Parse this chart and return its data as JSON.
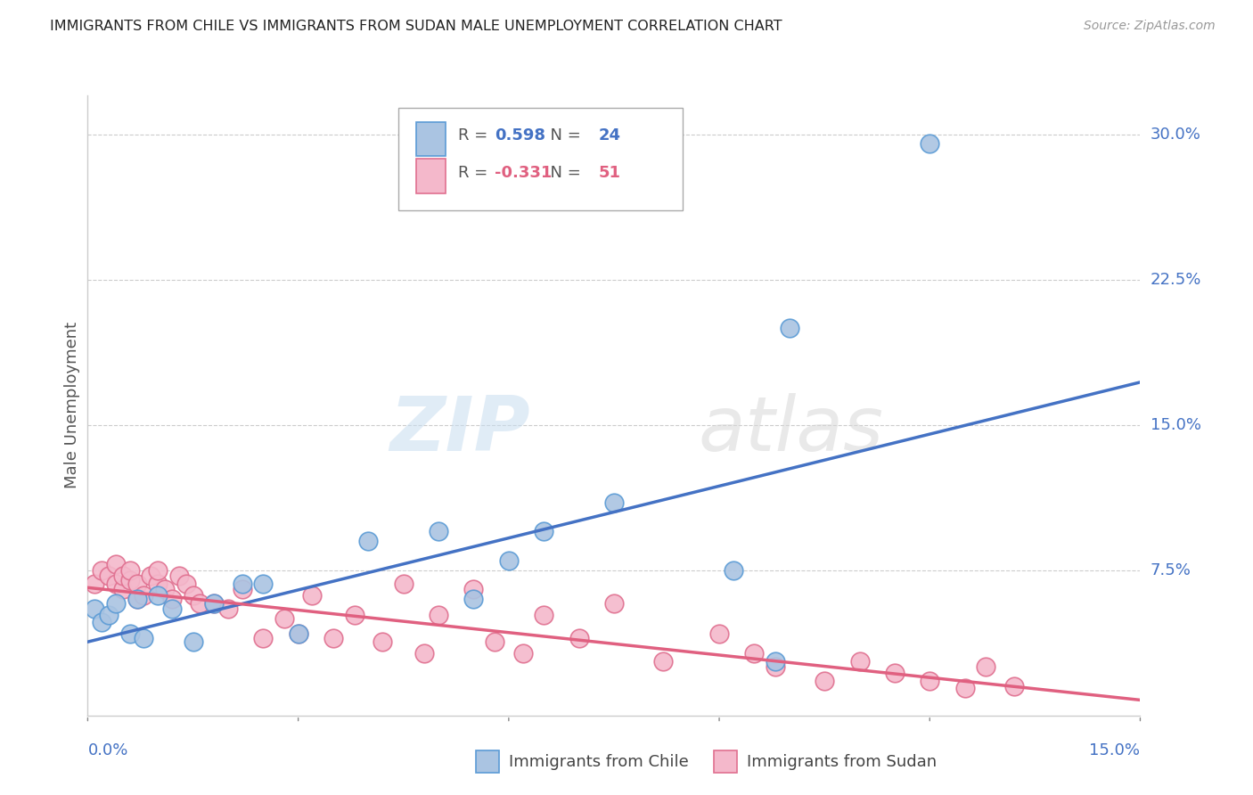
{
  "title": "IMMIGRANTS FROM CHILE VS IMMIGRANTS FROM SUDAN MALE UNEMPLOYMENT CORRELATION CHART",
  "source": "Source: ZipAtlas.com",
  "ylabel": "Male Unemployment",
  "ytick_labels": [
    "7.5%",
    "15.0%",
    "22.5%",
    "30.0%"
  ],
  "ytick_values": [
    0.075,
    0.15,
    0.225,
    0.3
  ],
  "xlim": [
    0.0,
    0.15
  ],
  "ylim": [
    0.0,
    0.32
  ],
  "chile_color": "#aac4e2",
  "chile_edge_color": "#5b9bd5",
  "sudan_color": "#f4b8cb",
  "sudan_edge_color": "#e07090",
  "line_chile_color": "#4472c4",
  "line_sudan_color": "#e06080",
  "r_chile": 0.598,
  "n_chile": 24,
  "r_sudan": -0.331,
  "n_sudan": 51,
  "watermark_zip": "ZIP",
  "watermark_atlas": "atlas",
  "legend_label_chile": "Immigrants from Chile",
  "legend_label_sudan": "Immigrants from Sudan",
  "chile_x": [
    0.001,
    0.002,
    0.003,
    0.004,
    0.006,
    0.007,
    0.008,
    0.01,
    0.012,
    0.015,
    0.018,
    0.022,
    0.025,
    0.03,
    0.04,
    0.05,
    0.055,
    0.06,
    0.065,
    0.075,
    0.092,
    0.1,
    0.12,
    0.098
  ],
  "chile_y": [
    0.055,
    0.048,
    0.052,
    0.058,
    0.042,
    0.06,
    0.04,
    0.062,
    0.055,
    0.038,
    0.058,
    0.068,
    0.068,
    0.042,
    0.09,
    0.095,
    0.06,
    0.08,
    0.095,
    0.11,
    0.075,
    0.2,
    0.295,
    0.028
  ],
  "sudan_x": [
    0.001,
    0.002,
    0.003,
    0.004,
    0.004,
    0.005,
    0.005,
    0.006,
    0.006,
    0.007,
    0.007,
    0.008,
    0.009,
    0.01,
    0.01,
    0.011,
    0.012,
    0.013,
    0.014,
    0.015,
    0.016,
    0.018,
    0.02,
    0.022,
    0.025,
    0.028,
    0.03,
    0.032,
    0.035,
    0.038,
    0.042,
    0.045,
    0.048,
    0.05,
    0.055,
    0.058,
    0.062,
    0.065,
    0.07,
    0.075,
    0.082,
    0.09,
    0.095,
    0.098,
    0.105,
    0.11,
    0.115,
    0.12,
    0.125,
    0.128,
    0.132
  ],
  "sudan_y": [
    0.068,
    0.075,
    0.072,
    0.068,
    0.078,
    0.065,
    0.072,
    0.07,
    0.075,
    0.06,
    0.068,
    0.062,
    0.072,
    0.068,
    0.075,
    0.065,
    0.06,
    0.072,
    0.068,
    0.062,
    0.058,
    0.058,
    0.055,
    0.065,
    0.04,
    0.05,
    0.042,
    0.062,
    0.04,
    0.052,
    0.038,
    0.068,
    0.032,
    0.052,
    0.065,
    0.038,
    0.032,
    0.052,
    0.04,
    0.058,
    0.028,
    0.042,
    0.032,
    0.025,
    0.018,
    0.028,
    0.022,
    0.018,
    0.014,
    0.025,
    0.015
  ],
  "chile_line_x": [
    0.0,
    0.15
  ],
  "chile_line_y": [
    0.038,
    0.172
  ],
  "sudan_line_x": [
    0.0,
    0.15
  ],
  "sudan_line_y": [
    0.066,
    0.008
  ]
}
